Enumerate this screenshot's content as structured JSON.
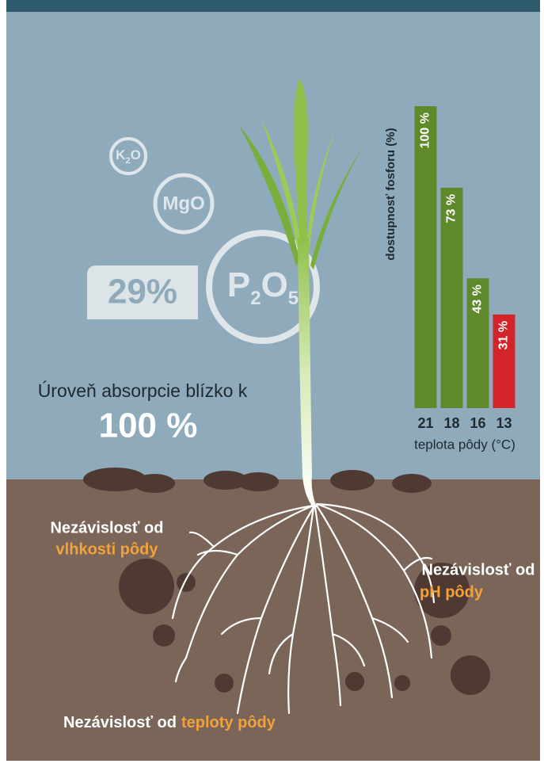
{
  "molecules": [
    {
      "parts": [
        "K",
        "2",
        "O"
      ]
    },
    {
      "parts": [
        "MgO"
      ]
    },
    {
      "parts": [
        "P",
        "2",
        "O",
        "5"
      ]
    }
  ],
  "badge": "29%",
  "absorption": {
    "text": "Úroveň absorpcie blízko k",
    "value": "100 %"
  },
  "soil_labels": [
    {
      "text": "Nezávislosť od",
      "highlight": "vlhkosti pôdy"
    },
    {
      "text": "Nezávislosť od",
      "highlight": "pH pôdy"
    },
    {
      "text": "Nezávislosť od",
      "highlight": "teploty pôdy"
    }
  ],
  "chart_data": {
    "type": "bar",
    "categories": [
      "21",
      "18",
      "16",
      "13"
    ],
    "values": [
      100,
      73,
      43,
      31
    ],
    "value_labels": [
      "100 %",
      "73 %",
      "43 %",
      "31 %"
    ],
    "colors": [
      "#5e8a2c",
      "#5e8a2c",
      "#5e8a2c",
      "#d3242c"
    ],
    "ylim": [
      0,
      100
    ],
    "xlabel": "teplota pôdy (°C)",
    "ylabel": "dostupnosť fosforu (%)"
  }
}
